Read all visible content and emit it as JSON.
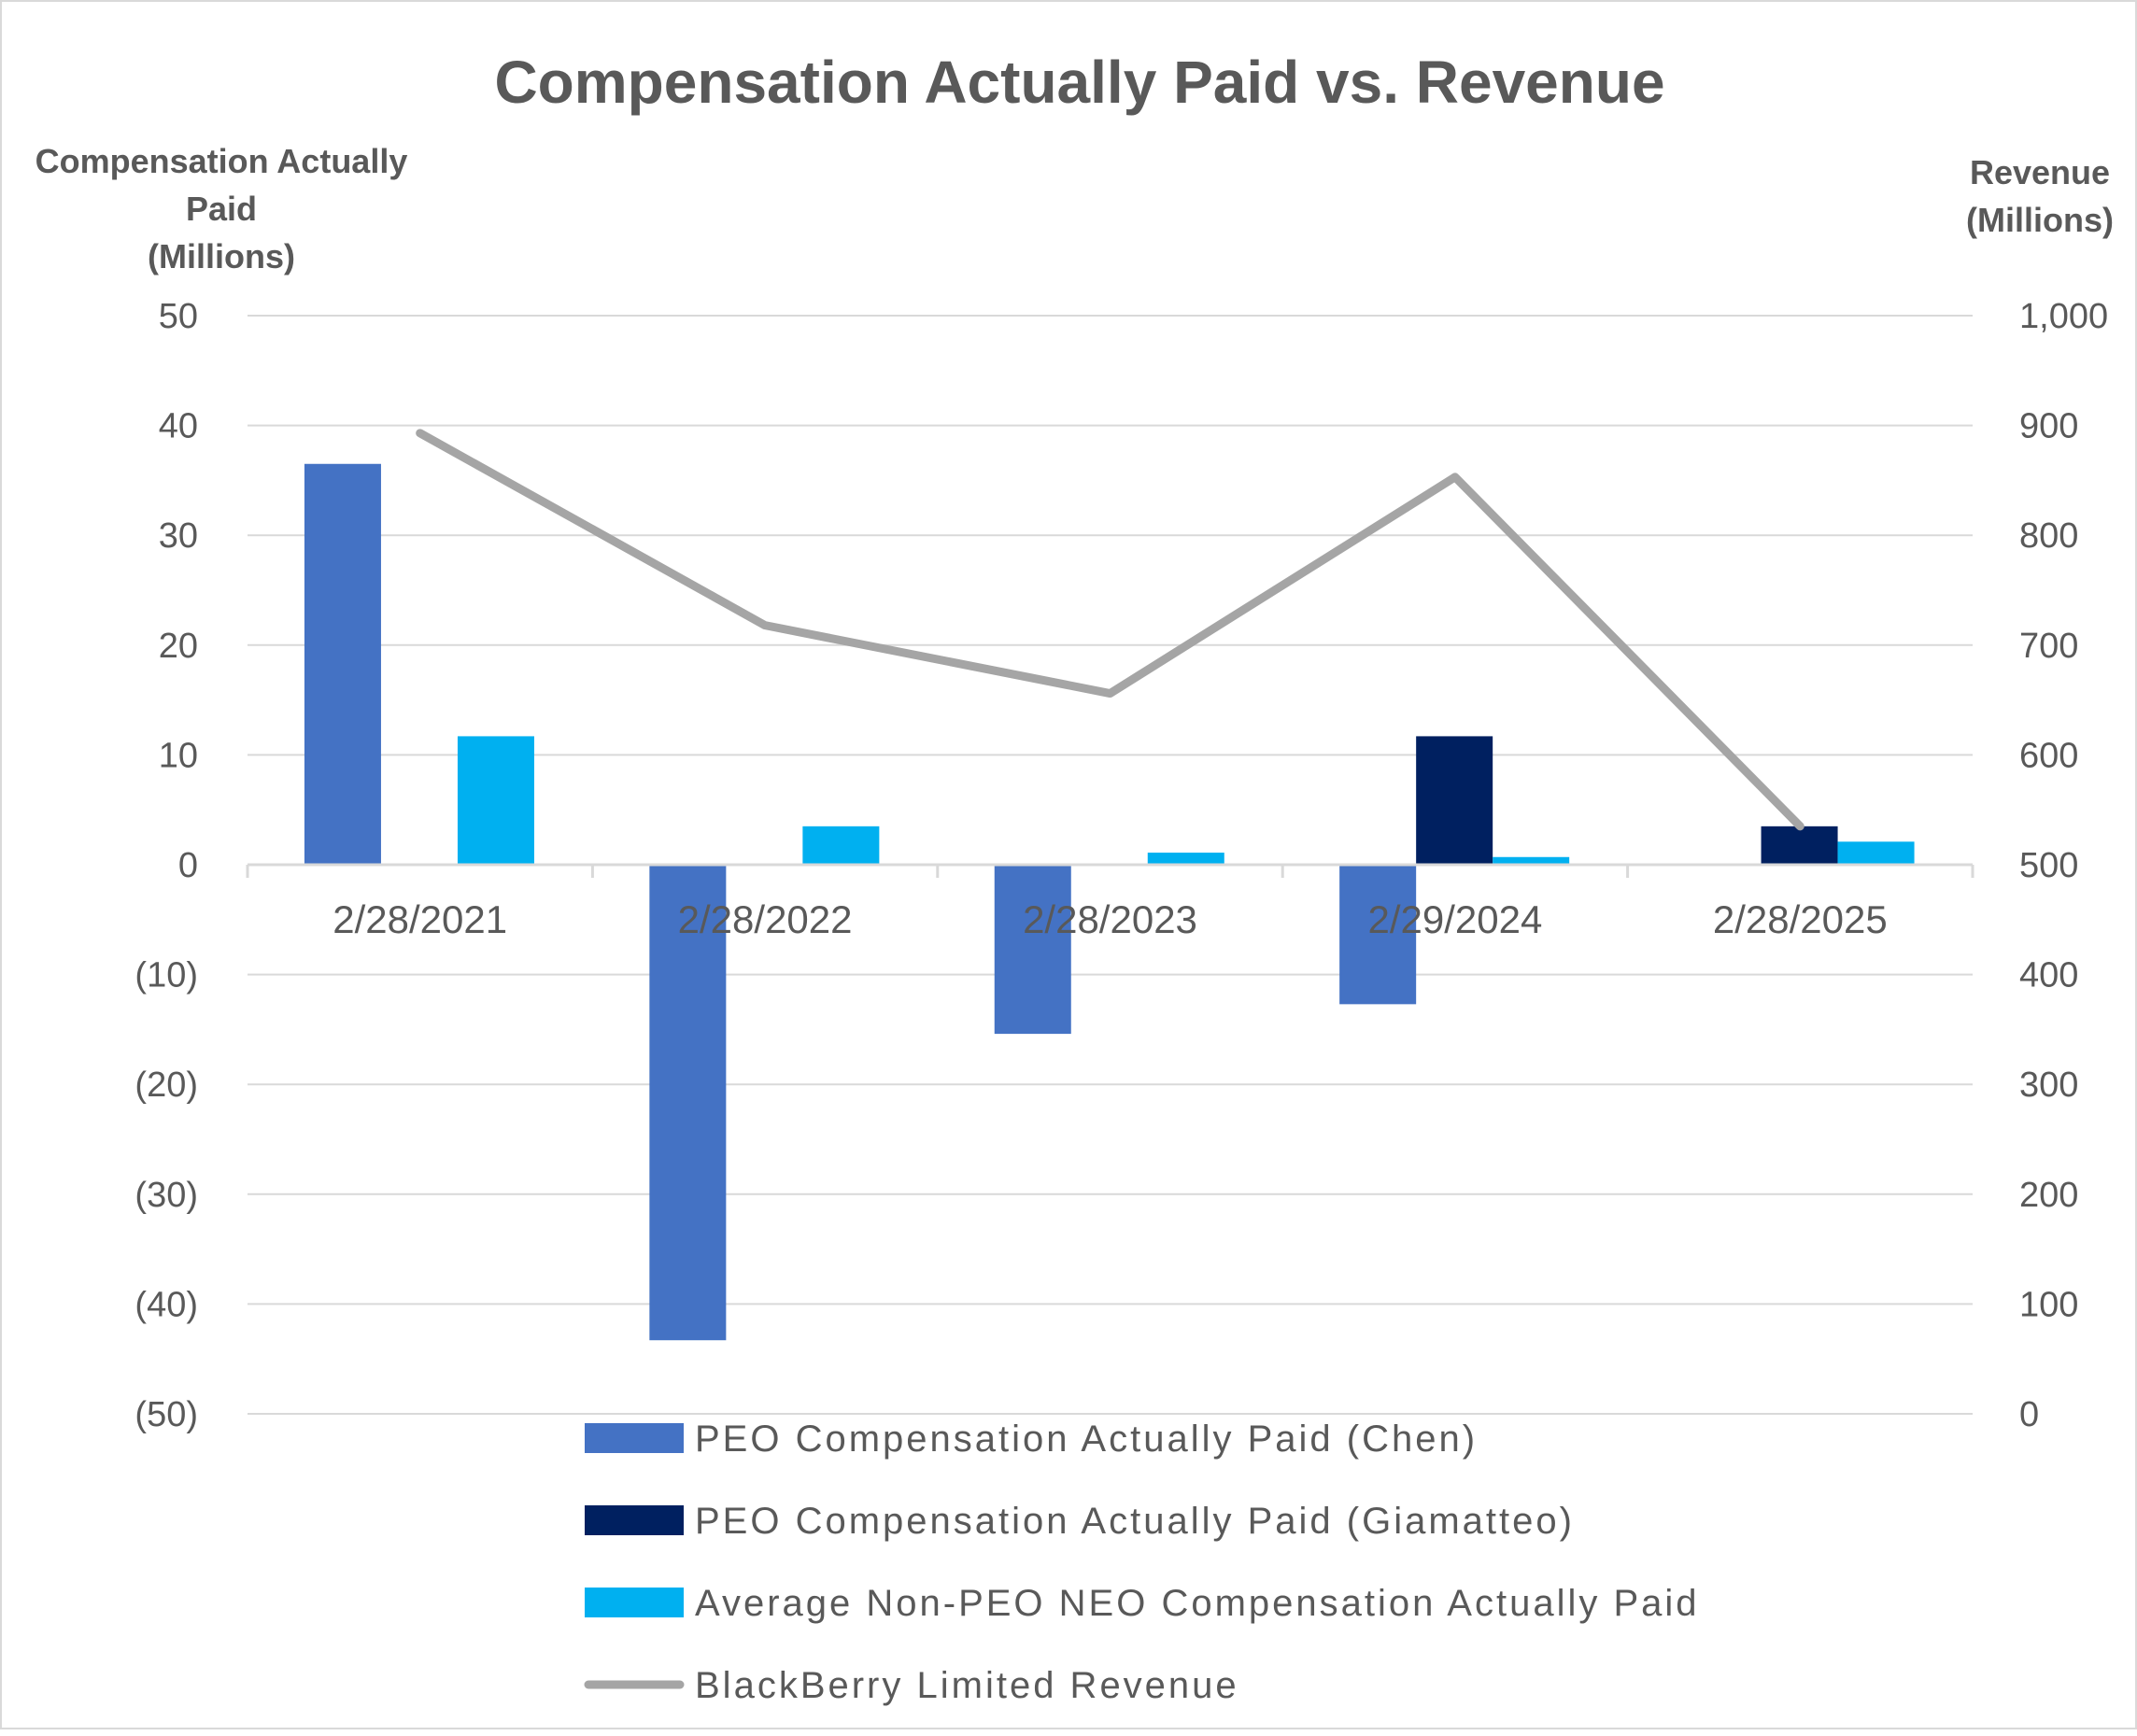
{
  "chart_data": {
    "type": "bar",
    "title": "Compensation Actually Paid vs. Revenue",
    "ylabel_left": [
      "Compensation Actually",
      "Paid",
      "(Millions)"
    ],
    "ylabel_right": [
      "Revenue",
      "(Millions)"
    ],
    "categories": [
      "2/28/2021",
      "2/28/2022",
      "2/28/2023",
      "2/29/2024",
      "2/28/2025"
    ],
    "ylim_left": [
      -50,
      50
    ],
    "yticks_left": [
      {
        "v": 50,
        "label": "50"
      },
      {
        "v": 40,
        "label": "40"
      },
      {
        "v": 30,
        "label": "30"
      },
      {
        "v": 20,
        "label": "20"
      },
      {
        "v": 10,
        "label": "10"
      },
      {
        "v": 0,
        "label": "0"
      },
      {
        "v": -10,
        "label": "(10)"
      },
      {
        "v": -20,
        "label": "(20)"
      },
      {
        "v": -30,
        "label": "(30)"
      },
      {
        "v": -40,
        "label": "(40)"
      },
      {
        "v": -50,
        "label": "(50)"
      }
    ],
    "ylim_right": [
      0,
      1000
    ],
    "yticks_right": [
      {
        "v": 1000,
        "label": "1,000"
      },
      {
        "v": 900,
        "label": "900"
      },
      {
        "v": 800,
        "label": "800"
      },
      {
        "v": 700,
        "label": "700"
      },
      {
        "v": 600,
        "label": "600"
      },
      {
        "v": 500,
        "label": "500"
      },
      {
        "v": 400,
        "label": "400"
      },
      {
        "v": 300,
        "label": "300"
      },
      {
        "v": 200,
        "label": "200"
      },
      {
        "v": 100,
        "label": "100"
      },
      {
        "v": 0,
        "label": "0"
      }
    ],
    "grid": true,
    "legend_position": "bottom",
    "series": [
      {
        "name": "PEO Compensation Actually Paid (Chen)",
        "type": "bar",
        "axis": "left",
        "color": "#4472C4",
        "values": [
          36.5,
          -43.3,
          -15.4,
          -12.7,
          null
        ]
      },
      {
        "name": "PEO Compensation Actually Paid (Giamatteo)",
        "type": "bar",
        "axis": "left",
        "color": "#002060",
        "values": [
          null,
          null,
          null,
          11.7,
          3.5
        ]
      },
      {
        "name": "Average Non-PEO NEO Compensation Actually Paid",
        "type": "bar",
        "axis": "left",
        "color": "#00B0F0",
        "values": [
          11.7,
          3.5,
          1.1,
          0.7,
          2.1
        ]
      },
      {
        "name": "BlackBerry Limited Revenue",
        "type": "line",
        "axis": "right",
        "color": "#A5A5A5",
        "values": [
          893,
          718,
          656,
          853,
          535
        ]
      }
    ]
  }
}
